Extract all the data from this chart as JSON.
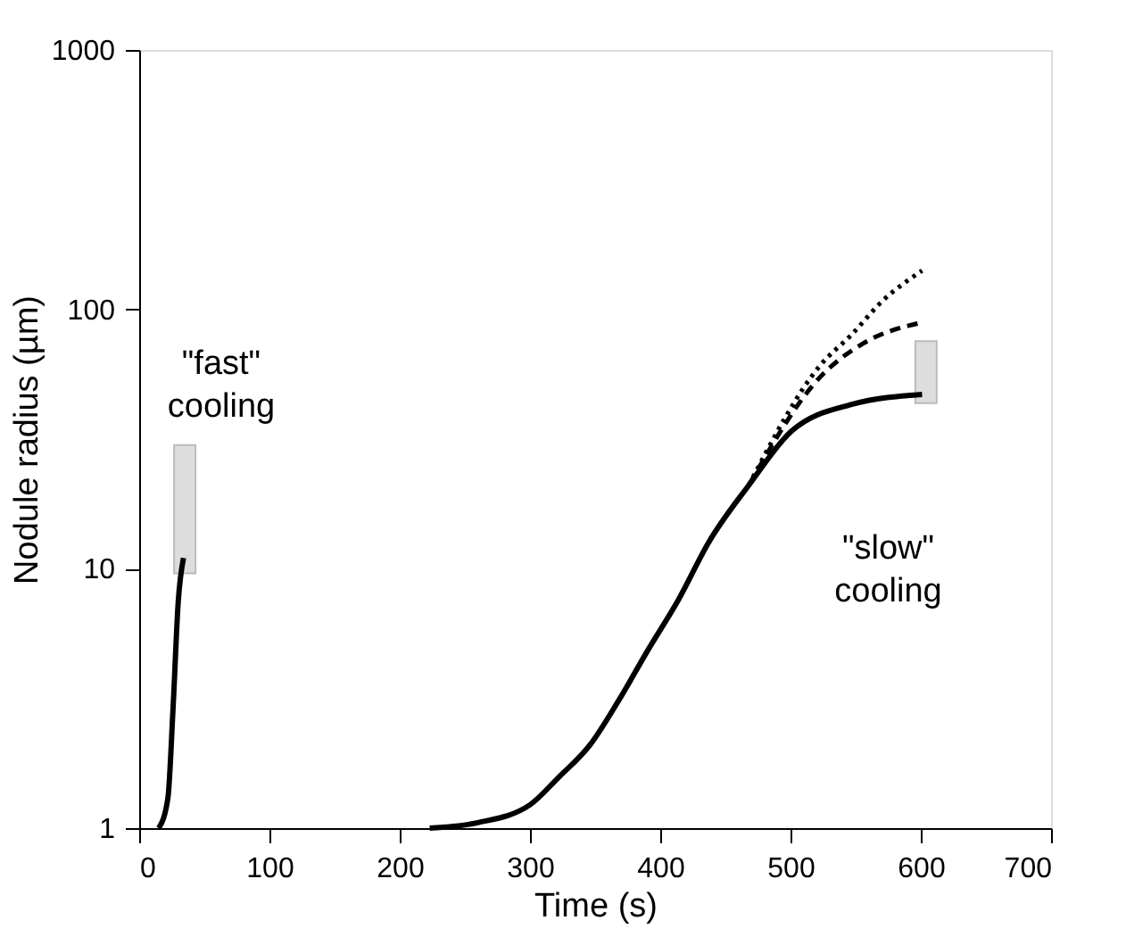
{
  "chart_data": {
    "type": "line",
    "xlabel": "Time (s)",
    "ylabel": "Nodule radius (µm)",
    "xlim": [
      0,
      700
    ],
    "xticks": [
      0,
      100,
      200,
      300,
      400,
      500,
      600,
      700
    ],
    "ylim": [
      1,
      1000
    ],
    "yticks": [
      1,
      10,
      100,
      1000
    ],
    "log": true,
    "marker": "none",
    "annotations": [
      "\"fast\"\ncooling",
      "\"slow\"\ncooling"
    ],
    "series": [
      {
        "type": "bar",
        "color": "#dddddd",
        "x": [
          35,
          604
        ],
        "base": [
          9.6,
          43.5
        ],
        "values": [
          20.4,
          32
        ]
      },
      {
        "color": "#000000",
        "line_style": "solid",
        "x": [
          15,
          22,
          26,
          30,
          34
        ],
        "values": [
          1,
          1.3,
          2.9,
          7.5,
          11
        ]
      },
      {
        "color": "#000000",
        "line_style": "solid",
        "x": [
          223,
          260,
          300,
          322,
          346,
          368,
          391,
          414,
          437,
          468,
          501,
          547,
          601
        ],
        "values": [
          1,
          1.05,
          1.23,
          1.57,
          2.09,
          3.1,
          4.9,
          7.6,
          12.6,
          21,
          34,
          43,
          47
        ]
      },
      {
        "color": "#000000",
        "line_style": "dashed",
        "x": [
          468,
          523,
          556,
          601
        ],
        "values": [
          21,
          55,
          74,
          89
        ]
      },
      {
        "color": "#000000",
        "line_style": "dotted",
        "x": [
          468,
          523,
          547,
          570,
          601
        ],
        "values": [
          21,
          61,
          80,
          107,
          141
        ]
      }
    ]
  }
}
